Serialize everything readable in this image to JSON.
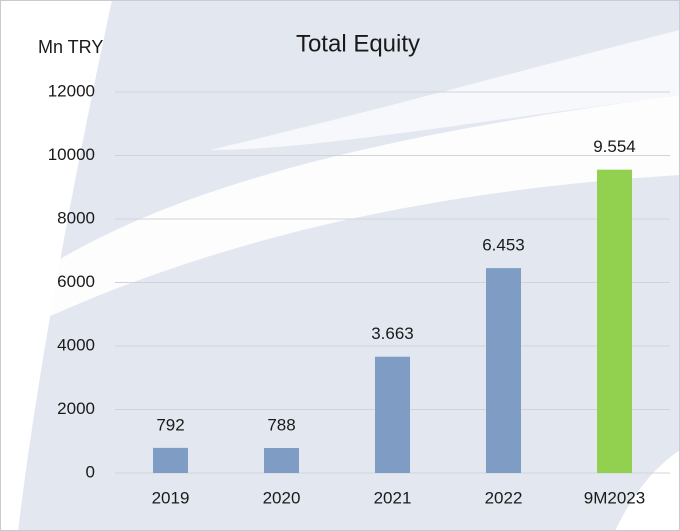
{
  "chart_data": {
    "type": "bar",
    "title": "Total Equity",
    "y_label": "Mn TRY",
    "categories": [
      "2019",
      "2020",
      "2021",
      "2022",
      "9M2023"
    ],
    "values": [
      792,
      788,
      3663,
      6453,
      9554
    ],
    "value_labels": [
      "792",
      "788",
      "3.663",
      "6.453",
      "9.554"
    ],
    "colors": [
      "#7f9dc4",
      "#7f9dc4",
      "#7f9dc4",
      "#7f9dc4",
      "#92d050"
    ],
    "ylim": [
      0,
      12000
    ],
    "yticks": [
      0,
      2000,
      4000,
      6000,
      8000,
      10000,
      12000
    ],
    "grid": true
  }
}
